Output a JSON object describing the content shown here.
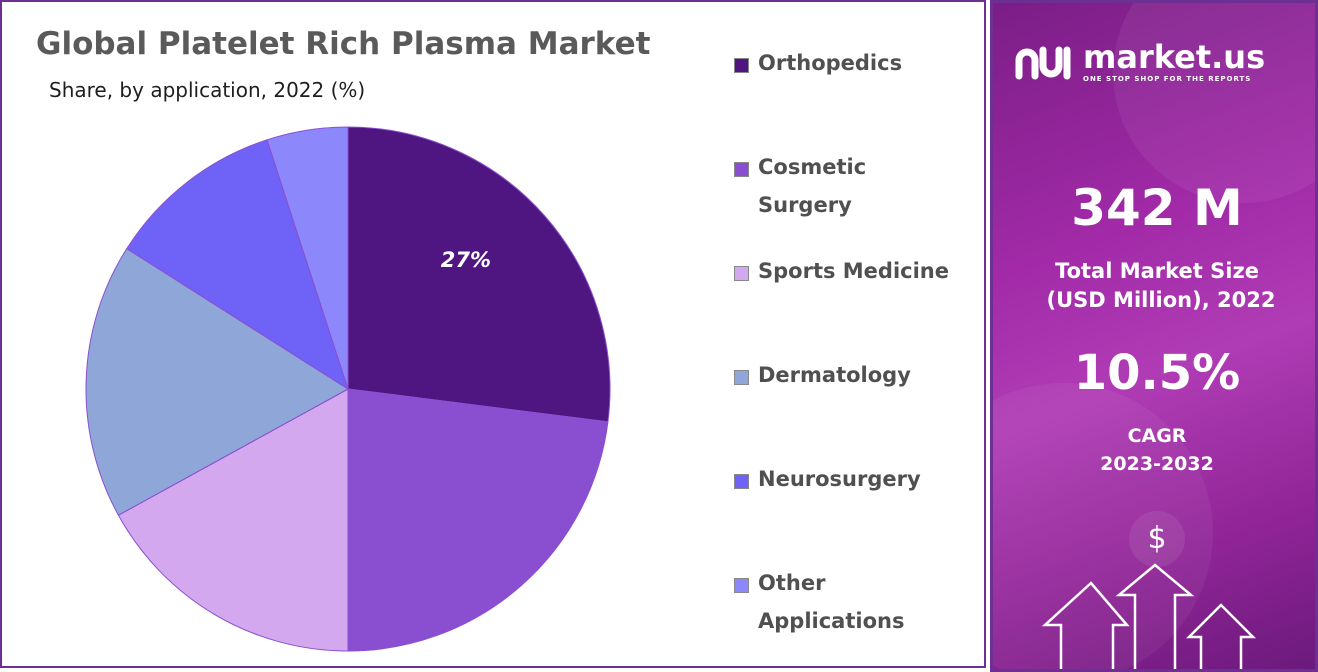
{
  "chart_data": {
    "type": "pie",
    "title": "Global Platelet Rich Plasma Market",
    "subtitle": "Share, by application, 2022 (%)",
    "categories": [
      "Orthopedics",
      "Cosmetic Surgery",
      "Sports Medicine",
      "Dermatology",
      "Neurosurgery",
      "Other Applications"
    ],
    "values": [
      27,
      23,
      17,
      17,
      11,
      5
    ],
    "colors": [
      "#4f1682",
      "#8a4fd0",
      "#d3a8ee",
      "#8ea7d8",
      "#6f63f7",
      "#8c88fb"
    ],
    "data_labels": [
      {
        "index": 0,
        "text": "27%"
      }
    ],
    "legend_position": "right"
  },
  "brand": {
    "name": "market.us",
    "tagline": "ONE STOP SHOP FOR THE REPORTS"
  },
  "stats": {
    "market_size_value": "342 M",
    "market_size_label_line1": "Total Market Size",
    "market_size_label_line2": "(USD Million), 2022",
    "cagr_value": "10.5%",
    "cagr_label": "CAGR",
    "cagr_period": "2023-2032"
  },
  "decor": {
    "dollar_symbol": "$"
  },
  "colors": {
    "border": "#6d2f92",
    "side_panel": "#a22aa8"
  }
}
